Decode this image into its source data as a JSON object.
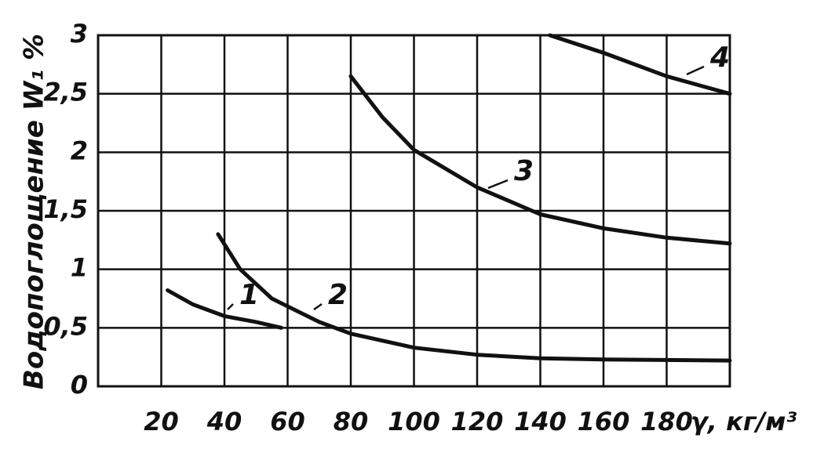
{
  "chart_data": {
    "type": "line",
    "y_label": "Водопоглощение W₁ %",
    "x_label": "γ, кг/м³",
    "xlim": [
      0,
      200
    ],
    "xticks": [
      20,
      40,
      60,
      80,
      100,
      120,
      140,
      160,
      180
    ],
    "ylim": [
      0,
      3
    ],
    "yticks": [
      0,
      {
        "value": 0.5,
        "label": "0,5"
      },
      1,
      {
        "value": 1.5,
        "label": "1,5"
      },
      2,
      {
        "value": 2.5,
        "label": "2,5"
      },
      3
    ],
    "grid": true,
    "series": [
      {
        "name": "1",
        "color": "#111111",
        "x": [
          22,
          30,
          40,
          50,
          58
        ],
        "values": [
          0.82,
          0.7,
          0.6,
          0.55,
          0.5
        ]
      },
      {
        "name": "2",
        "color": "#111111",
        "x": [
          38,
          45,
          55,
          70,
          80,
          100,
          120,
          140,
          160,
          200
        ],
        "values": [
          1.3,
          1.0,
          0.75,
          0.55,
          0.45,
          0.33,
          0.27,
          0.24,
          0.23,
          0.22
        ]
      },
      {
        "name": "3",
        "color": "#111111",
        "x": [
          80,
          90,
          100,
          120,
          140,
          160,
          180,
          200
        ],
        "values": [
          2.65,
          2.3,
          2.02,
          1.7,
          1.47,
          1.35,
          1.27,
          1.22
        ]
      },
      {
        "name": "4",
        "color": "#111111",
        "x": [
          143,
          160,
          180,
          200
        ],
        "values": [
          3.0,
          2.85,
          2.65,
          2.5
        ]
      }
    ]
  }
}
